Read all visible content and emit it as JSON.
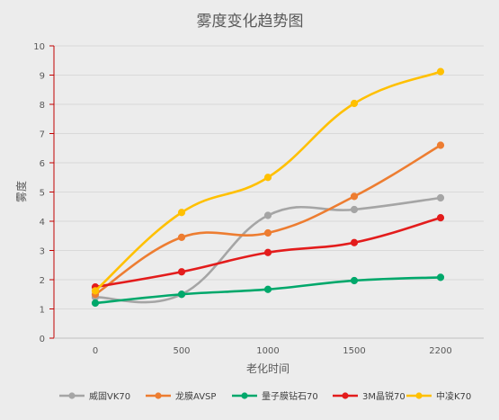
{
  "chart_data": {
    "type": "line",
    "title": "雾度变化趋势图",
    "xlabel": "老化时间",
    "ylabel": "雾度",
    "categories": [
      "0",
      "500",
      "1000",
      "1500",
      "2200"
    ],
    "ylim": [
      0,
      10
    ],
    "yticks": [
      "0",
      "1",
      "2",
      "3",
      "4",
      "5",
      "6",
      "7",
      "8",
      "9",
      "10"
    ],
    "grid": true,
    "smooth": true,
    "legend_position": "bottom",
    "series": [
      {
        "name": "威固VK70",
        "color": "#a5a5a5",
        "values": [
          1.4,
          1.5,
          4.2,
          4.4,
          4.8
        ]
      },
      {
        "name": "龙膜AVSP",
        "color": "#ed7d31",
        "values": [
          1.5,
          3.45,
          3.6,
          4.85,
          6.6
        ]
      },
      {
        "name": "量子膜钻石70",
        "color": "#00a86b",
        "values": [
          1.2,
          1.5,
          1.67,
          1.97,
          2.08
        ]
      },
      {
        "name": "3M晶锐70",
        "color": "#e31c1c",
        "values": [
          1.75,
          2.27,
          2.93,
          3.27,
          4.12
        ]
      },
      {
        "name": "中凌K70",
        "color": "#ffc000",
        "values": [
          1.62,
          4.3,
          5.5,
          8.03,
          9.12
        ]
      }
    ]
  }
}
